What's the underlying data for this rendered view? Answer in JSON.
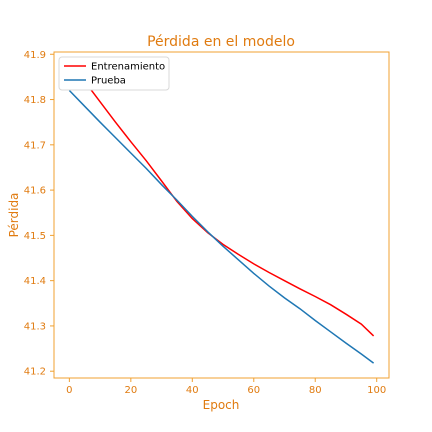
{
  "colors": {
    "accent": "#e8901a",
    "frame": "#f0a030",
    "train": "#ff0000",
    "test": "#1f77b4"
  },
  "chart_data": {
    "type": "line",
    "title": "Pérdida en el modelo",
    "xlabel": "Epoch",
    "ylabel": "Pérdida",
    "xlim": [
      -5,
      104
    ],
    "ylim": [
      41.185,
      41.905
    ],
    "x_ticks": [
      0,
      20,
      40,
      60,
      80,
      100
    ],
    "y_ticks": [
      41.2,
      41.3,
      41.4,
      41.5,
      41.6,
      41.7,
      41.8,
      41.9
    ],
    "legend": "upper-left",
    "grid": false,
    "series": [
      {
        "name": "Entrenamiento",
        "color": "#ff0000",
        "x": [
          0,
          5,
          10,
          15,
          20,
          25,
          30,
          35,
          40,
          45,
          50,
          55,
          60,
          65,
          70,
          75,
          80,
          85,
          90,
          95,
          99
        ],
        "y": [
          41.88,
          41.84,
          41.795,
          41.75,
          41.707,
          41.665,
          41.62,
          41.575,
          41.537,
          41.506,
          41.48,
          41.458,
          41.437,
          41.418,
          41.4,
          41.382,
          41.365,
          41.347,
          41.326,
          41.304,
          41.278
        ]
      },
      {
        "name": "Prueba",
        "color": "#1f77b4",
        "x": [
          0,
          5,
          10,
          15,
          20,
          25,
          30,
          35,
          40,
          45,
          50,
          55,
          60,
          65,
          70,
          75,
          80,
          85,
          90,
          95,
          99
        ],
        "y": [
          41.82,
          41.785,
          41.75,
          41.716,
          41.682,
          41.648,
          41.612,
          41.578,
          41.542,
          41.508,
          41.476,
          41.446,
          41.416,
          41.388,
          41.362,
          41.338,
          41.312,
          41.287,
          41.262,
          41.238,
          41.218
        ]
      }
    ]
  }
}
